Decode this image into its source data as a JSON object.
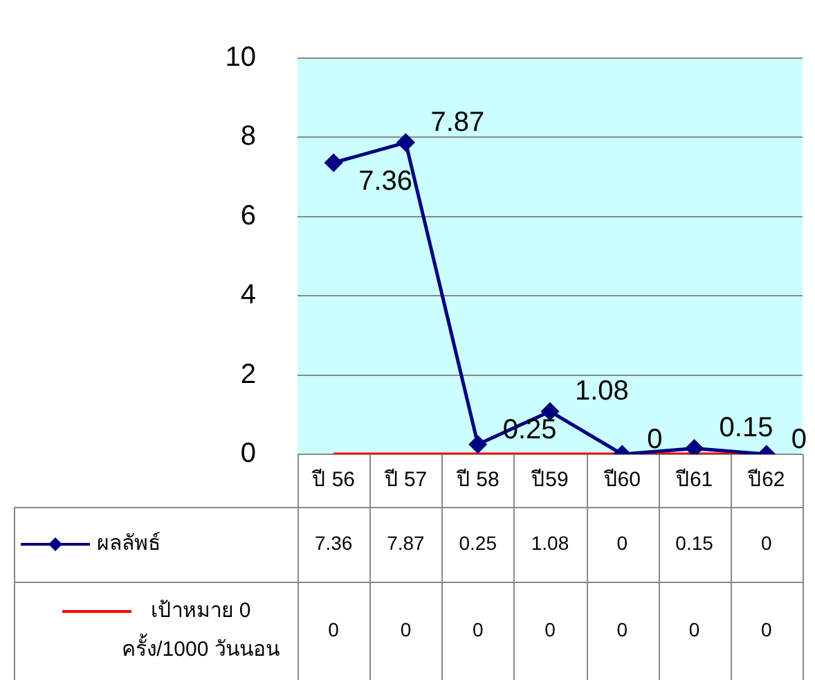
{
  "chart_data": {
    "type": "line",
    "categories": [
      "ปี 56",
      "ปี 57",
      "ปี 58",
      "ปี59",
      "ปี60",
      "ปี61",
      "ปี62"
    ],
    "series": [
      {
        "name": "ผลลัพธ์",
        "color": "#000080",
        "marker": "diamond",
        "values": [
          7.36,
          7.87,
          0.25,
          1.08,
          0,
          0.15,
          0
        ]
      },
      {
        "name": "เป้าหมาย 0 ครั้ง/1000 วันนอน",
        "color": "#ff0000",
        "marker": "none",
        "values": [
          0,
          0,
          0,
          0,
          0,
          0,
          0
        ]
      }
    ],
    "ylim": [
      0,
      10
    ],
    "yticks": [
      0,
      2,
      4,
      6,
      8,
      10
    ],
    "annotations": [
      {
        "text": "7.36",
        "x": "ปี 56",
        "y": 7.36
      },
      {
        "text": "7.87",
        "x": "ปี 57",
        "y": 7.87
      },
      {
        "text": "0.25",
        "x": "ปี 58",
        "y": 0.25
      },
      {
        "text": "1.08",
        "x": "ปี59",
        "y": 1.08
      },
      {
        "text": "0",
        "x": "ปี60",
        "y": 0
      },
      {
        "text": "0.15",
        "x": "ปี61",
        "y": 0.15
      },
      {
        "text": "0",
        "x": "ปี62",
        "y": 0
      }
    ],
    "grid": "y",
    "legend": "bottom left",
    "data_labels": true
  }
}
